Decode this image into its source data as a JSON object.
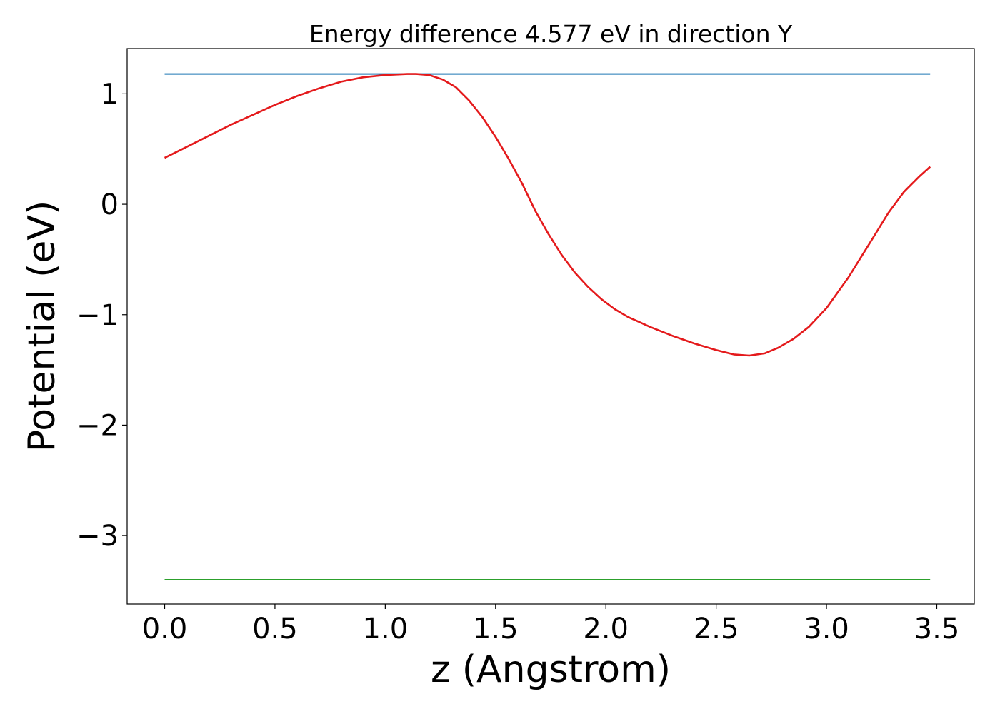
{
  "chart_data": {
    "type": "line",
    "title": "Energy difference 4.577 eV in direction Y",
    "xlabel": "z (Angstrom)",
    "ylabel": "Potential (eV)",
    "xlim": [
      -0.17,
      3.67
    ],
    "ylim": [
      -3.62,
      1.41
    ],
    "xticks": [
      {
        "value": 0.0,
        "label": "0.0"
      },
      {
        "value": 0.5,
        "label": "0.5"
      },
      {
        "value": 1.0,
        "label": "1.0"
      },
      {
        "value": 1.5,
        "label": "1.5"
      },
      {
        "value": 2.0,
        "label": "2.0"
      },
      {
        "value": 2.5,
        "label": "2.5"
      },
      {
        "value": 3.0,
        "label": "3.0"
      },
      {
        "value": 3.5,
        "label": "3.5"
      }
    ],
    "yticks": [
      {
        "value": 1,
        "label": "1"
      },
      {
        "value": 0,
        "label": "0"
      },
      {
        "value": -1,
        "label": "−1"
      },
      {
        "value": -2,
        "label": "−2"
      },
      {
        "value": -3,
        "label": "−3"
      }
    ],
    "grid": false,
    "series": [
      {
        "color": "#1f77b4",
        "x": [
          0.0,
          3.47
        ],
        "y": [
          1.18,
          1.18
        ]
      },
      {
        "color": "#2ca02c",
        "x": [
          0.0,
          3.47
        ],
        "y": [
          -3.4,
          -3.4
        ]
      },
      {
        "color": "#e41a1c",
        "x": [
          0.0,
          0.1,
          0.2,
          0.3,
          0.4,
          0.5,
          0.6,
          0.7,
          0.8,
          0.9,
          1.0,
          1.1,
          1.14,
          1.2,
          1.26,
          1.32,
          1.38,
          1.44,
          1.5,
          1.56,
          1.62,
          1.68,
          1.74,
          1.8,
          1.86,
          1.92,
          1.98,
          2.04,
          2.1,
          2.2,
          2.3,
          2.4,
          2.5,
          2.58,
          2.65,
          2.72,
          2.78,
          2.85,
          2.92,
          3.0,
          3.1,
          3.2,
          3.28,
          3.35,
          3.42,
          3.47
        ],
        "y": [
          0.42,
          0.52,
          0.62,
          0.72,
          0.81,
          0.9,
          0.98,
          1.05,
          1.11,
          1.15,
          1.17,
          1.18,
          1.18,
          1.17,
          1.13,
          1.06,
          0.94,
          0.79,
          0.61,
          0.41,
          0.19,
          -0.06,
          -0.27,
          -0.46,
          -0.62,
          -0.75,
          -0.86,
          -0.95,
          -1.02,
          -1.11,
          -1.19,
          -1.26,
          -1.32,
          -1.36,
          -1.37,
          -1.35,
          -1.3,
          -1.22,
          -1.11,
          -0.94,
          -0.66,
          -0.34,
          -0.08,
          0.11,
          0.25,
          0.34
        ]
      }
    ]
  }
}
